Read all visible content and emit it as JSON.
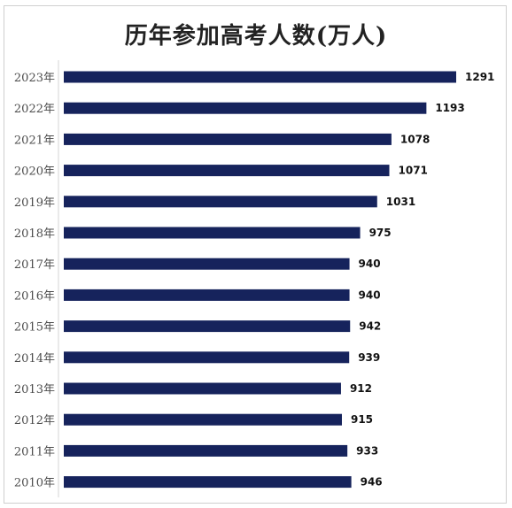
{
  "chart_data": {
    "type": "bar",
    "orientation": "horizontal",
    "title": "历年参加高考人数(万人)",
    "categories": [
      "2023年",
      "2022年",
      "2021年",
      "2020年",
      "2019年",
      "2018年",
      "2017年",
      "2016年",
      "2015年",
      "2014年",
      "2013年",
      "2012年",
      "2011年",
      "2010年"
    ],
    "values": [
      1291,
      1193,
      1078,
      1071,
      1031,
      975,
      940,
      940,
      942,
      939,
      912,
      915,
      933,
      946
    ],
    "xlim": [
      0,
      1300
    ],
    "bar_color": "#16235c",
    "grid": false,
    "legend": "none"
  }
}
